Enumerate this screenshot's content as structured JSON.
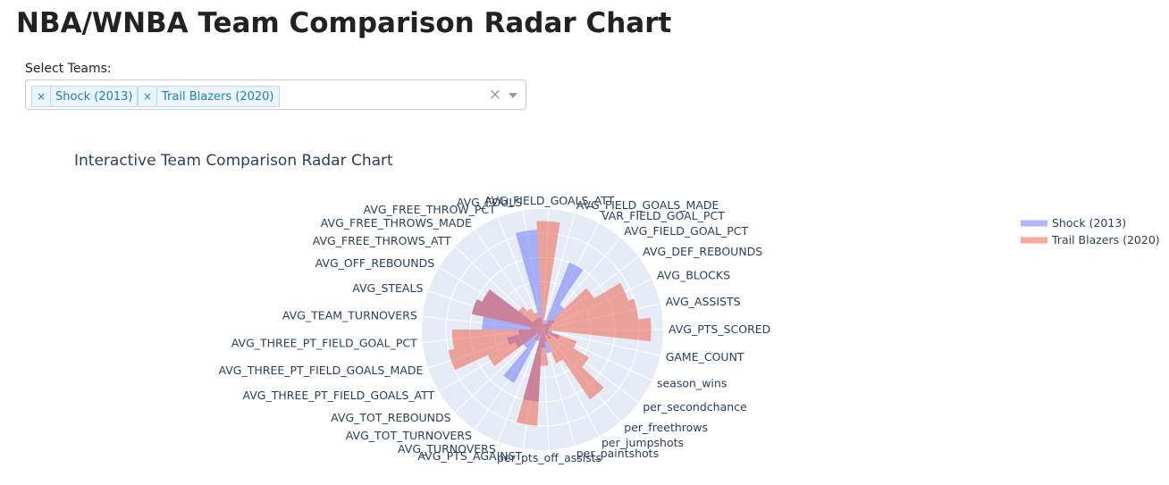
{
  "page": {
    "title": "NBA/WNBA Team Comparison Radar Chart"
  },
  "selector": {
    "label": "Select Teams:",
    "chips": [
      {
        "remove": "×",
        "label": "Shock (2013)"
      },
      {
        "remove": "×",
        "label": "Trail Blazers (2020)"
      }
    ],
    "clear": "×"
  },
  "chart_data": {
    "type": "radar",
    "title": "Interactive Team Comparison Radar Chart",
    "legend_position": "right",
    "radial_range": [
      0,
      1
    ],
    "grid": true,
    "categories": [
      "AVG_PTS_SCORED",
      "AVG_ASSISTS",
      "AVG_BLOCKS",
      "AVG_DEF_REBOUNDS",
      "AVG_FIELD_GOAL_PCT",
      "VAR_FIELD_GOAL_PCT",
      "AVG_FIELD_GOALS_MADE",
      "AVG_FIELD_GOALS_ATT",
      "AVG_FOULS",
      "AVG_FREE_THROW_PCT",
      "AVG_FREE_THROWS_MADE",
      "AVG_FREE_THROWS_ATT",
      "AVG_OFF_REBOUNDS",
      "AVG_STEALS",
      "AVG_TEAM_TURNOVERS",
      "AVG_THREE_PT_FIELD_GOAL_PCT",
      "AVG_THREE_PT_FIELD_GOALS_MADE",
      "AVG_THREE_PT_FIELD_GOALS_ATT",
      "AVG_TOT_REBOUNDS",
      "AVG_TOT_TURNOVERS",
      "AVG_TURNOVERS",
      "AVG_PTS_AGAINST",
      "per_pts_off_assists",
      "per_paintshots",
      "per_jumpshots",
      "per_freethrows",
      "per_secondchance",
      "season_wins",
      "GAME_COUNT"
    ],
    "series": [
      {
        "name": "Shock (2013)",
        "color": "#636efa",
        "values": [
          0.05,
          0.06,
          0.08,
          0.12,
          0.25,
          0.6,
          0.08,
          0.05,
          0.83,
          0.1,
          0.1,
          0.1,
          0.55,
          0.6,
          0.5,
          0.2,
          0.3,
          0.25,
          0.2,
          0.5,
          0.1,
          0.6,
          0.15,
          0.2,
          0.05,
          0.1,
          0.05,
          0.15,
          0.08
        ]
      },
      {
        "name": "Trail Blazers (2020)",
        "color": "#ef553b",
        "values": [
          0.9,
          0.8,
          0.75,
          0.5,
          0.1,
          0.05,
          0.05,
          0.9,
          0.1,
          0.15,
          0.2,
          0.25,
          0.55,
          0.6,
          0.1,
          0.75,
          0.8,
          0.5,
          0.05,
          0.1,
          0.05,
          0.8,
          0.3,
          0.1,
          0.3,
          0.7,
          0.45,
          0.3,
          0.05
        ]
      }
    ]
  }
}
